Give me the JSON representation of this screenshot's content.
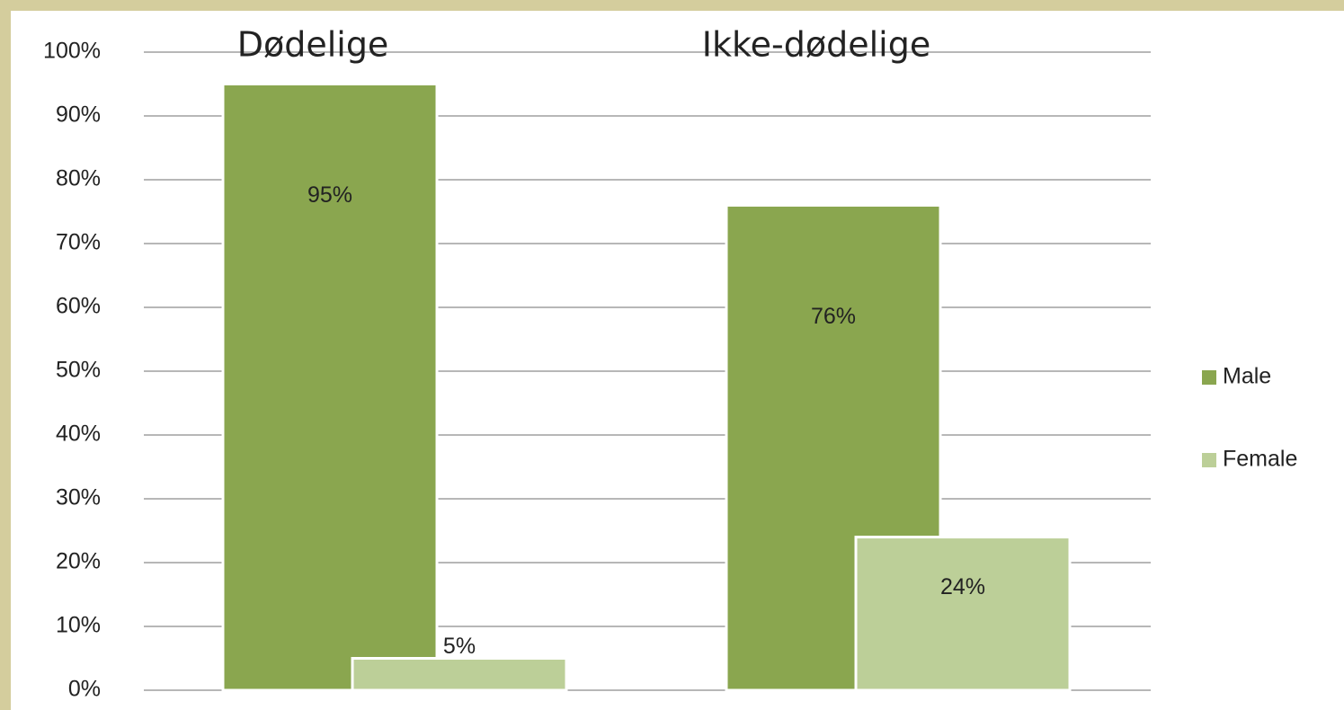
{
  "chart_data": {
    "type": "bar",
    "categories": [
      "Dødelige",
      "Ikke-dødelige"
    ],
    "series": [
      {
        "name": "Male",
        "color": "#8aa64f",
        "values": [
          95,
          76
        ],
        "value_labels": [
          "95%",
          "76%"
        ]
      },
      {
        "name": "Female",
        "color": "#bccf98",
        "values": [
          5,
          24
        ],
        "value_labels": [
          "5%",
          "24%"
        ]
      }
    ],
    "ylim": [
      0,
      100
    ],
    "yticks": [
      {
        "value": 0,
        "label": "0%"
      },
      {
        "value": 10,
        "label": "10%"
      },
      {
        "value": 20,
        "label": "20%"
      },
      {
        "value": 30,
        "label": "30%"
      },
      {
        "value": 40,
        "label": "40%"
      },
      {
        "value": 50,
        "label": "50%"
      },
      {
        "value": 60,
        "label": "60%"
      },
      {
        "value": 70,
        "label": "70%"
      },
      {
        "value": 80,
        "label": "80%"
      },
      {
        "value": 90,
        "label": "90%"
      },
      {
        "value": 100,
        "label": "100%"
      }
    ],
    "grid": true,
    "legend": "right"
  }
}
